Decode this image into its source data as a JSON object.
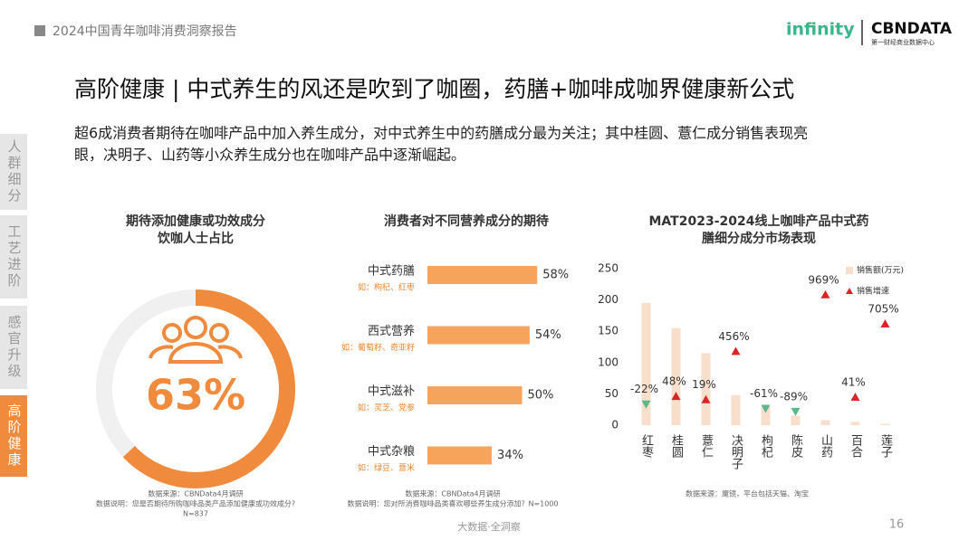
{
  "header": {
    "report": "2024中国青年咖啡消费洞察报告",
    "logo1": "infinity",
    "logo2": "CBNDATA",
    "logo2_sub": "第一财经商业数据中心"
  },
  "title": "高阶健康 | 中式养生的风还是吹到了咖圈，药膳+咖啡成咖界健康新公式",
  "subtitle": [
    "超6成消费者期待在咖啡产品中加入养生成分，对中式养生中的药膳成分最为关注；其中桂圆、薏仁成分销售表现亮",
    "眼，决明子、山药等小众养生成分也在咖啡产品中逐渐崛起。"
  ],
  "sidebar": [
    "人群细分",
    "工艺进阶",
    "感官升级",
    "高阶健康"
  ],
  "chart_data": [
    {
      "type": "donut",
      "title": [
        "期待添加健康或功效成分",
        "饮咖人士占比"
      ],
      "values": [
        63
      ],
      "value_labels": [
        "63%"
      ],
      "color": "#f08a3c",
      "track_color": "#f0f0f0",
      "source": "数据来源：CBNData4月调研",
      "note": [
        "数据说明：您是否期待所购咖啡品类产品添加健康或功效成分?",
        "N=837"
      ]
    },
    {
      "type": "hbar",
      "title": "消费者对不同营养成分的期待",
      "categories": [
        "中式药膳",
        "西式营养",
        "中式滋补",
        "中式杂粮"
      ],
      "examples": [
        "如：枸杞、红枣",
        "如：葡萄籽、奇亚籽",
        "如：灵芝、党参",
        "如：绿豆、薏米"
      ],
      "values": [
        58,
        54,
        50,
        34
      ],
      "value_labels": [
        "58%",
        "54%",
        "50%",
        "34%"
      ],
      "color": "#f6a35c",
      "source": "数据来源：CBNData4月调研",
      "note": "数据说明：您对所消费咖啡品类喜欢哪些养生成分添加？N=1000"
    },
    {
      "type": "bar-marker",
      "title": [
        "MAT2023-2024线上咖啡产品中式药",
        "膳细分成分市场表现"
      ],
      "categories": [
        "红枣",
        "桂圆",
        "薏仁",
        "决明子",
        "枸杞",
        "陈皮",
        "山药",
        "百合",
        "莲子"
      ],
      "series": [
        {
          "name": "销售额(万元)",
          "color": "#f7dfcb",
          "values": [
            195,
            155,
            115,
            48,
            30,
            15,
            8,
            5,
            2
          ]
        },
        {
          "name": "销售增速",
          "color": "#d9252a",
          "negative_color": "#5cb88a",
          "axis": "y2",
          "values": [
            -22,
            48,
            19,
            456,
            -61,
            -89,
            969,
            41,
            705
          ],
          "value_labels": [
            "-22%",
            "48%",
            "19%",
            "456%",
            "-61%",
            "-89%",
            "969%",
            "41%",
            "705%"
          ]
        }
      ],
      "ylim": [
        0,
        250
      ],
      "yticks": [
        0,
        50,
        100,
        150,
        200,
        250
      ],
      "y2lim": [
        -213,
        1205
      ],
      "grid": false,
      "source": "数据来源：魔镜，平台包括天猫、淘宝"
    }
  ],
  "footer": {
    "center": "大数据·全洞察",
    "page": "16"
  }
}
